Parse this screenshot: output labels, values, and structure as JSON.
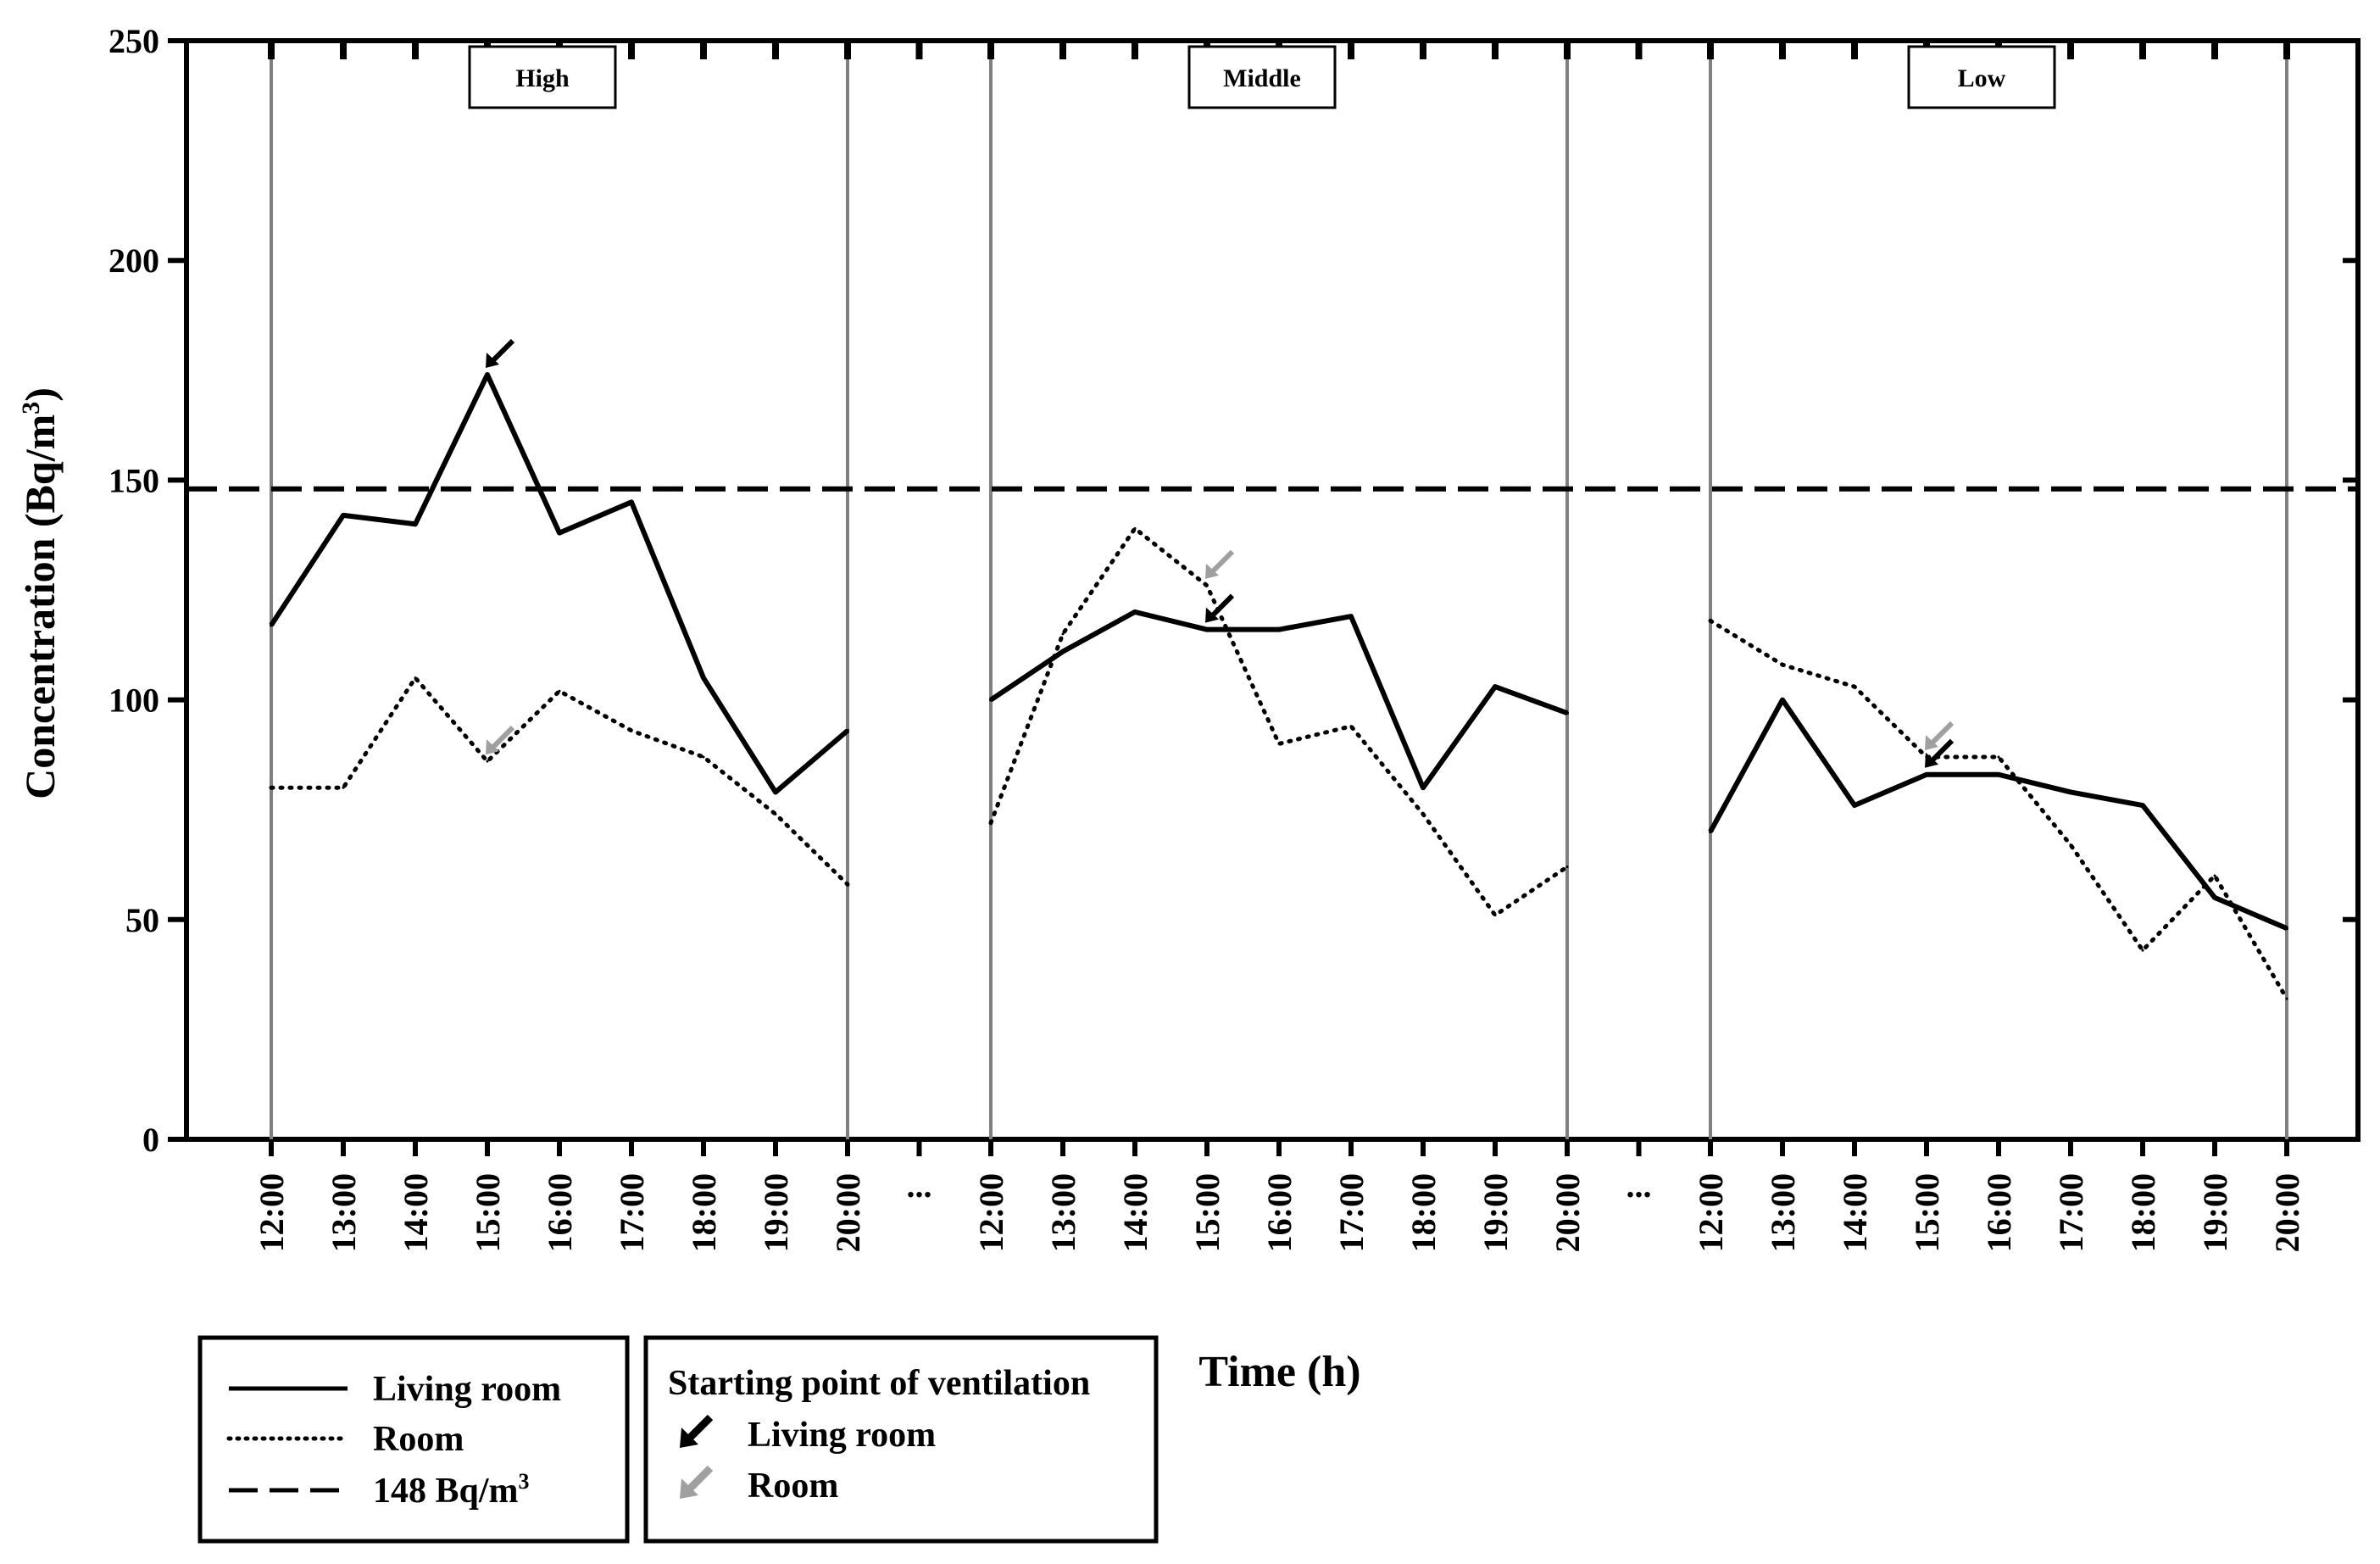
{
  "chart_data": {
    "type": "line",
    "ylabel": "Concentration (Bq/m³)",
    "ylabel_main": "Concentration (Bq/m",
    "ylabel_sup": "3",
    "ylabel_close": ")",
    "xlabel": "Time (h)",
    "ylim": [
      0,
      250
    ],
    "yticks": [
      "0",
      "50",
      "100",
      "150",
      "200",
      "250"
    ],
    "ytick_values": [
      0,
      50,
      100,
      150,
      200,
      250
    ],
    "times": [
      "12:00",
      "13:00",
      "14:00",
      "15:00",
      "16:00",
      "17:00",
      "18:00",
      "19:00",
      "20:00"
    ],
    "gap_label": "...",
    "reference_line": {
      "value": 148,
      "label": "148 Bq/m³"
    },
    "panels": [
      {
        "name": "High",
        "living_room": [
          117,
          142,
          140,
          174,
          138,
          145,
          105,
          79,
          93
        ],
        "room": [
          80,
          80,
          105,
          86,
          102,
          93,
          87,
          74,
          58
        ],
        "ventilation_start": {
          "living_room": {
            "time_index": 3,
            "value": 174
          },
          "room": {
            "time_index": 3,
            "value": 86
          }
        }
      },
      {
        "name": "Middle",
        "living_room": [
          100,
          111,
          120,
          116,
          116,
          119,
          80,
          103,
          97
        ],
        "room": [
          72,
          115,
          139,
          126,
          90,
          94,
          74,
          51,
          62
        ],
        "ventilation_start": {
          "living_room": {
            "time_index": 3,
            "value": 116
          },
          "room": {
            "time_index": 3,
            "value": 126
          }
        }
      },
      {
        "name": "Low",
        "living_room": [
          70,
          100,
          76,
          83,
          83,
          79,
          76,
          55,
          48
        ],
        "room": [
          118,
          108,
          103,
          87,
          87,
          67,
          43,
          60,
          32
        ],
        "ventilation_start": {
          "living_room": {
            "time_index": 3,
            "value": 83
          },
          "room": {
            "time_index": 3,
            "value": 87
          }
        }
      }
    ],
    "legend": {
      "lines": [
        {
          "label": "Living room",
          "style": "solid"
        },
        {
          "label": "Room",
          "style": "dotted"
        },
        {
          "label_main": "148 Bq/m",
          "label_sup": "3",
          "style": "dashed"
        }
      ],
      "arrows": {
        "title": "Starting point of ventilation",
        "items": [
          {
            "label": "Living room",
            "color": "#000000"
          },
          {
            "label": "Room",
            "color": "#a0a0a0"
          }
        ]
      }
    },
    "colors": {
      "line": "#000000",
      "room_arrow": "#a0a0a0",
      "panel_border": "#808080"
    }
  }
}
